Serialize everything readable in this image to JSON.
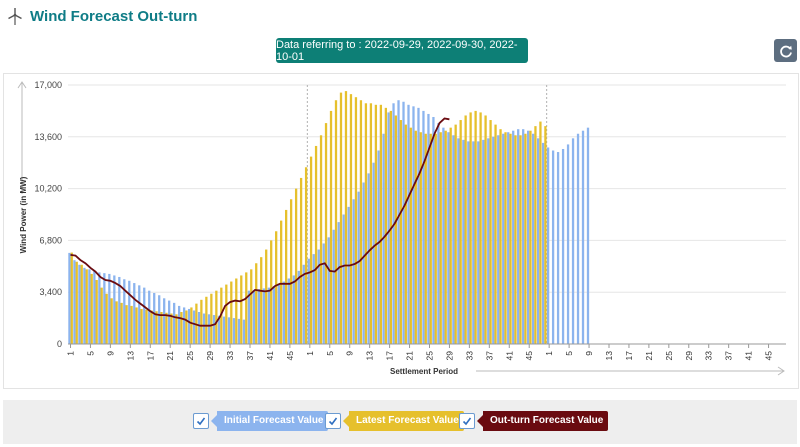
{
  "header": {
    "title": "Wind Forecast Out-turn",
    "logo_icon": "wind-turbine-icon"
  },
  "date_range": {
    "label": "Data referring to : 2022-09-29, 2022-09-30, 2022-10-01"
  },
  "refresh": {
    "icon": "refresh-icon"
  },
  "legend": {
    "initial": {
      "label": "Initial Forecast Value",
      "checked": true
    },
    "latest": {
      "label": "Latest Forecast Value",
      "checked": true
    },
    "outturn": {
      "label": "Out-turn Forecast Value",
      "checked": true
    }
  },
  "colors": {
    "initial": "#8cb4ee",
    "latest": "#e6c02c",
    "outturn": "#6a0b10",
    "title": "#0e7c86",
    "daterange_bg": "#0d7f76",
    "refresh_bg": "#5d6e80"
  },
  "chart_data": {
    "type": "bar",
    "title": "",
    "xlabel": "Settlement Period",
    "ylabel": "Wind Power (in MW)",
    "ylim": [
      0,
      17000
    ],
    "yticks": [
      0,
      3400,
      6800,
      10200,
      13600,
      17000
    ],
    "ytick_labels": [
      "0",
      "3,400",
      "6,800",
      "10,200",
      "13,600",
      "17,000"
    ],
    "x_tick_labels": [
      "1",
      "5",
      "9",
      "13",
      "17",
      "21",
      "25",
      "29",
      "33",
      "37",
      "41",
      "45",
      "1",
      "5",
      "9",
      "13",
      "17",
      "21",
      "25",
      "29",
      "33",
      "37",
      "41",
      "45",
      "1",
      "5",
      "9",
      "13",
      "17",
      "21",
      "25",
      "29",
      "33",
      "37",
      "41",
      "45"
    ],
    "day_dividers": [
      48,
      96
    ],
    "categories_per_day": 48,
    "days": [
      "2022-09-29",
      "2022-09-30",
      "2022-10-01"
    ],
    "series": [
      {
        "name": "Initial Forecast Value",
        "values": [
          5980,
          5500,
          5200,
          5000,
          4900,
          4800,
          4700,
          4650,
          4600,
          4500,
          4400,
          4250,
          4150,
          4000,
          3850,
          3700,
          3500,
          3350,
          3200,
          3000,
          2850,
          2700,
          2500,
          2400,
          2300,
          2200,
          2100,
          2000,
          1950,
          1900,
          1850,
          1800,
          1750,
          1700,
          1650,
          1600,
          3500,
          3550,
          3600,
          3650,
          3700,
          3800,
          3950,
          4100,
          4300,
          4500,
          4800,
          5200,
          5600,
          5900,
          6200,
          6600,
          7000,
          7500,
          8000,
          8500,
          9000,
          9500,
          10000,
          10600,
          11200,
          11900,
          12700,
          13800,
          15200,
          15800,
          16000,
          15900,
          15700,
          15600,
          15500,
          15300,
          15100,
          14900,
          14500,
          14200,
          13900,
          13700,
          13500,
          13400,
          13300,
          13300,
          13300,
          13400,
          13500,
          13600,
          13700,
          13800,
          13900,
          14000,
          14100,
          14100,
          14000,
          13800,
          13500,
          13200,
          12900,
          12700,
          12600,
          12800,
          13100,
          13500,
          13800,
          14000,
          14200
        ]
      },
      {
        "name": "Latest Forecast Value",
        "values": [
          6000,
          5400,
          5200,
          4900,
          4600,
          4200,
          3700,
          3300,
          3000,
          2800,
          2700,
          2550,
          2500,
          2400,
          2300,
          2250,
          2200,
          2150,
          2100,
          2050,
          2000,
          1950,
          2100,
          2200,
          2400,
          2650,
          2900,
          3100,
          3300,
          3500,
          3700,
          3900,
          4100,
          4300,
          4500,
          4700,
          4900,
          5300,
          5700,
          6200,
          6800,
          7400,
          8100,
          8800,
          9500,
          10200,
          10900,
          11600,
          12300,
          13000,
          13700,
          14500,
          15300,
          16000,
          16500,
          16600,
          16400,
          16200,
          16000,
          15800,
          15800,
          15700,
          15700,
          15500,
          15300,
          15000,
          14700,
          14400,
          14200,
          14000,
          13900,
          13800,
          13800,
          13800,
          13900,
          14000,
          14200,
          14400,
          14700,
          15000,
          15200,
          15300,
          15200,
          15000,
          14700,
          14400,
          14100,
          13900,
          13800,
          13700,
          13700,
          13800,
          14000,
          14300,
          14600,
          14300
        ]
      },
      {
        "name": "Out-turn Forecast Value",
        "type": "line",
        "values": [
          5850,
          5800,
          5500,
          5300,
          5000,
          4750,
          4400,
          4200,
          4150,
          4000,
          3800,
          3500,
          3200,
          2900,
          2650,
          2400,
          2150,
          1950,
          1900,
          1900,
          1850,
          1750,
          1700,
          1600,
          1400,
          1300,
          1200,
          1200,
          1200,
          1300,
          1800,
          2500,
          2750,
          2850,
          2800,
          2950,
          3250,
          3550,
          3500,
          3450,
          3500,
          3800,
          3950,
          3950,
          3950,
          4100,
          4400,
          4600,
          4700,
          4850,
          5200,
          5300,
          4800,
          4750,
          5050,
          5150,
          5150,
          5250,
          5450,
          5800,
          6150,
          6450,
          6700,
          7050,
          7450,
          7900,
          8500,
          9100,
          9800,
          10500,
          11200,
          12000,
          12900,
          13800,
          14500,
          14800,
          14750
        ]
      }
    ]
  }
}
